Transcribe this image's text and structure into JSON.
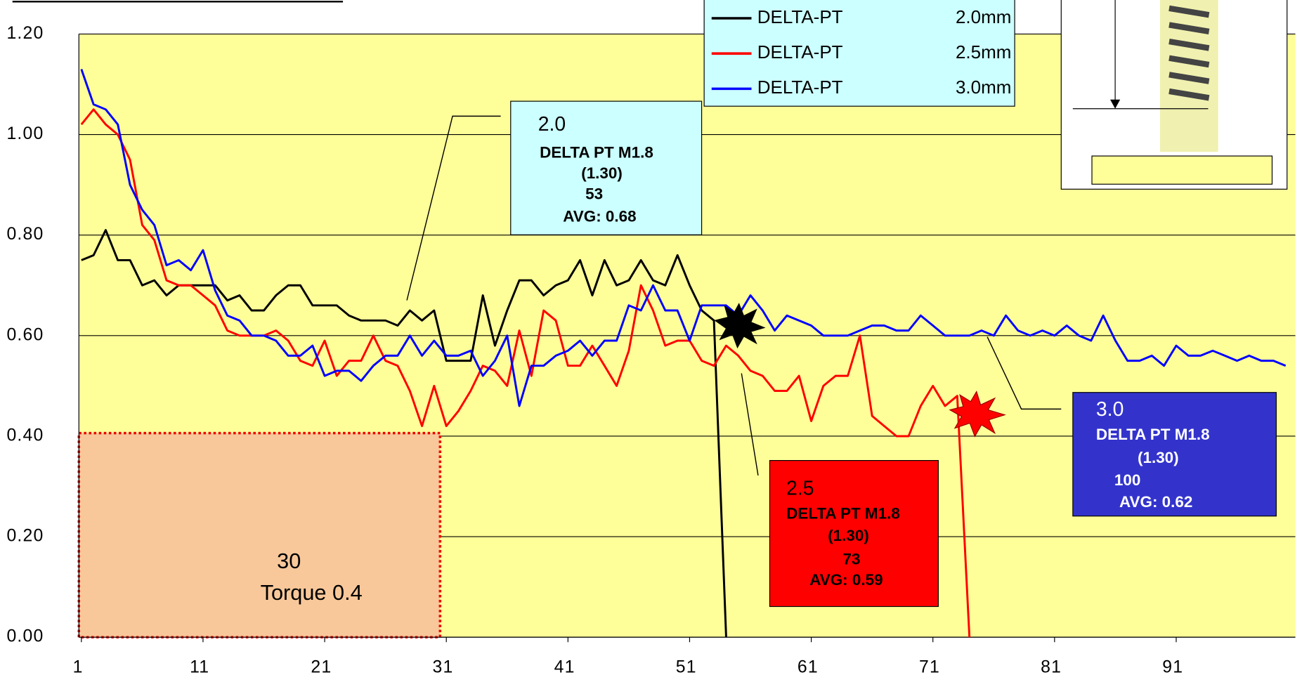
{
  "chart_data": {
    "type": "line",
    "x": [
      1,
      2,
      3,
      4,
      5,
      6,
      7,
      8,
      9,
      10,
      11,
      12,
      13,
      14,
      15,
      16,
      17,
      18,
      19,
      20,
      21,
      22,
      23,
      24,
      25,
      26,
      27,
      28,
      29,
      30,
      31,
      32,
      33,
      34,
      35,
      36,
      37,
      38,
      39,
      40,
      41,
      42,
      43,
      44,
      45,
      46,
      47,
      48,
      49,
      50,
      51,
      52,
      53,
      54,
      55,
      56,
      57,
      58,
      59,
      60,
      61,
      62,
      63,
      64,
      65,
      66,
      67,
      68,
      69,
      70,
      71,
      72,
      73,
      74,
      75,
      76,
      77,
      78,
      79,
      80,
      81,
      82,
      83,
      84,
      85,
      86,
      87,
      88,
      89,
      90,
      91,
      92,
      93,
      94,
      95,
      96,
      97,
      98,
      99,
      100
    ],
    "series": [
      {
        "name": "DELTA-PT",
        "detail": "2.0mm",
        "color": "#000000",
        "values": [
          0.75,
          0.76,
          0.81,
          0.75,
          0.75,
          0.7,
          0.71,
          0.68,
          0.7,
          0.7,
          0.7,
          0.7,
          0.67,
          0.68,
          0.65,
          0.65,
          0.68,
          0.7,
          0.7,
          0.66,
          0.66,
          0.66,
          0.64,
          0.63,
          0.63,
          0.63,
          0.62,
          0.65,
          0.63,
          0.65,
          0.55,
          0.55,
          0.55,
          0.68,
          0.58,
          0.65,
          0.71,
          0.71,
          0.68,
          0.7,
          0.71,
          0.75,
          0.68,
          0.75,
          0.7,
          0.71,
          0.75,
          0.71,
          0.7,
          0.76,
          0.7,
          0.65,
          0.63,
          0.0,
          null,
          null,
          null,
          null,
          null,
          null,
          null,
          null,
          null,
          null,
          null,
          null,
          null,
          null,
          null,
          null,
          null,
          null,
          null,
          null,
          null,
          null,
          null,
          null,
          null,
          null,
          null,
          null,
          null,
          null,
          null,
          null,
          null,
          null,
          null,
          null,
          null,
          null,
          null,
          null,
          null,
          null,
          null,
          null,
          null,
          null
        ]
      },
      {
        "name": "DELTA-PT",
        "detail": "2.5mm",
        "color": "#ff0000",
        "values": [
          1.02,
          1.05,
          1.02,
          1.0,
          0.95,
          0.82,
          0.79,
          0.71,
          0.7,
          0.7,
          0.68,
          0.66,
          0.61,
          0.6,
          0.6,
          0.6,
          0.61,
          0.59,
          0.55,
          0.54,
          0.59,
          0.52,
          0.55,
          0.55,
          0.6,
          0.55,
          0.54,
          0.49,
          0.42,
          0.5,
          0.42,
          0.45,
          0.49,
          0.54,
          0.53,
          0.5,
          0.61,
          0.52,
          0.65,
          0.63,
          0.54,
          0.54,
          0.58,
          0.54,
          0.5,
          0.57,
          0.7,
          0.65,
          0.58,
          0.59,
          0.59,
          0.55,
          0.54,
          0.58,
          0.56,
          0.53,
          0.52,
          0.49,
          0.49,
          0.52,
          0.43,
          0.5,
          0.52,
          0.52,
          0.6,
          0.44,
          0.42,
          0.4,
          0.4,
          0.46,
          0.5,
          0.46,
          0.48,
          0.0,
          null,
          null,
          null,
          null,
          null,
          null,
          null,
          null,
          null,
          null,
          null,
          null,
          null,
          null,
          null,
          null,
          null,
          null,
          null,
          null,
          null,
          null,
          null,
          null,
          null,
          null
        ]
      },
      {
        "name": "DELTA-PT",
        "detail": "3.0mm",
        "color": "#0000ff",
        "values": [
          1.13,
          1.06,
          1.05,
          1.02,
          0.9,
          0.85,
          0.82,
          0.74,
          0.75,
          0.73,
          0.77,
          0.69,
          0.64,
          0.63,
          0.6,
          0.6,
          0.59,
          0.56,
          0.56,
          0.58,
          0.52,
          0.53,
          0.53,
          0.51,
          0.54,
          0.56,
          0.56,
          0.6,
          0.56,
          0.59,
          0.56,
          0.56,
          0.57,
          0.52,
          0.55,
          0.6,
          0.46,
          0.54,
          0.54,
          0.56,
          0.57,
          0.59,
          0.56,
          0.59,
          0.59,
          0.66,
          0.65,
          0.7,
          0.65,
          0.65,
          0.59,
          0.66,
          0.66,
          0.66,
          0.64,
          0.68,
          0.65,
          0.61,
          0.64,
          0.63,
          0.62,
          0.6,
          0.6,
          0.6,
          0.61,
          0.62,
          0.62,
          0.61,
          0.61,
          0.64,
          0.62,
          0.6,
          0.6,
          0.6,
          0.61,
          0.6,
          0.64,
          0.61,
          0.6,
          0.61,
          0.6,
          0.62,
          0.6,
          0.59,
          0.64,
          0.59,
          0.55,
          0.55,
          0.56,
          0.54,
          0.58,
          0.56,
          0.56,
          0.57,
          0.56,
          0.55,
          0.56,
          0.55,
          0.55,
          0.54
        ]
      }
    ],
    "xlim": [
      1,
      101
    ],
    "xticks": [
      1,
      11,
      21,
      31,
      41,
      51,
      61,
      71,
      81,
      91
    ],
    "ylim": [
      0,
      1.2
    ],
    "yticks": [
      {
        "value": 0,
        "label": "0.00"
      },
      {
        "value": 0.2,
        "label": "0.20"
      },
      {
        "value": 0.4,
        "label": "0.40"
      },
      {
        "value": 0.6,
        "label": "0.60"
      },
      {
        "value": 0.8,
        "label": "0.80"
      },
      {
        "value": 1.0,
        "label": "1.00"
      },
      {
        "value": 1.2,
        "label": "1.20"
      }
    ],
    "grid": true,
    "annotations": [
      {
        "lines": [
          "2.0",
          "DELTA PT M1.8",
          "(1.30)",
          "53",
          "AVG: 0.68"
        ]
      },
      {
        "lines": [
          "2.5",
          "DELTA PT M1.8",
          "(1.30)",
          "73",
          "AVG: 0.59"
        ]
      },
      {
        "lines": [
          "3.0",
          "DELTA PT M1.8",
          "(1.30)",
          "100",
          "AVG: 0.62"
        ]
      },
      {
        "lines": [
          "30",
          "Torque 0.4"
        ]
      }
    ]
  }
}
